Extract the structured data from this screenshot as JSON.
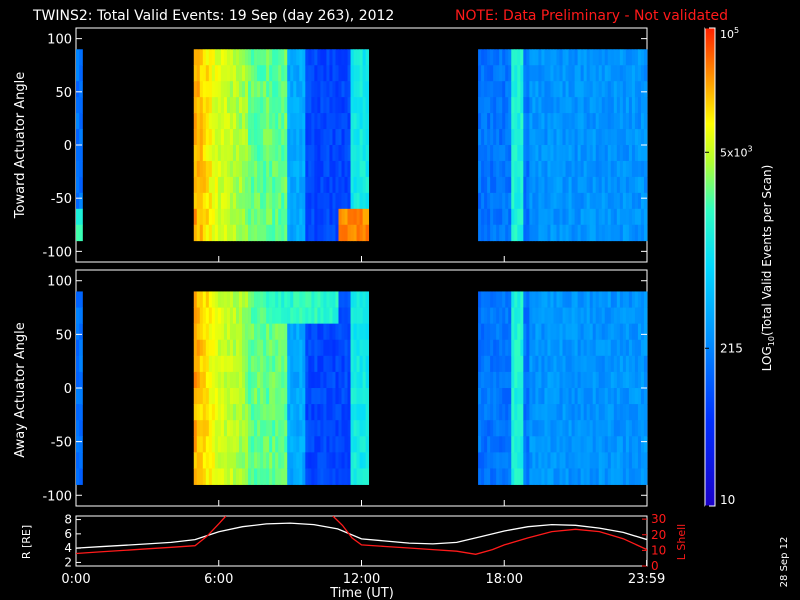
{
  "header": {
    "title": "TWINS2: Total Valid Events: 19 Sep (day 263), 2012",
    "note": "NOTE: Data Preliminary - Not validated",
    "note_color": "#ff1a1a"
  },
  "side_date": "28 Sep 12",
  "chart_data": [
    {
      "type": "heatmap",
      "ylabel": "Toward Actuator Angle",
      "ylim": [
        -110,
        110
      ],
      "y_ticks": [
        "100",
        "50",
        "0",
        "-50",
        "-100"
      ],
      "x_unit": "hours UT",
      "xlim": [
        0,
        24
      ],
      "data_blocks": [
        {
          "x": [
            0.0,
            0.27
          ],
          "y": [
            -90,
            90
          ],
          "level": 0.3
        },
        {
          "x": [
            4.95,
            12.3
          ],
          "y": [
            -90,
            90
          ],
          "level": 0.55
        },
        {
          "x": [
            16.9,
            24.0
          ],
          "y": [
            -90,
            90
          ],
          "level": 0.3
        }
      ],
      "value_note": "counts range 10 to 1e5 per scan; levels are log-scaled 0-1"
    },
    {
      "type": "heatmap",
      "ylabel": "Away Actuator Angle",
      "ylim": [
        -110,
        110
      ],
      "y_ticks": [
        "100",
        "50",
        "0",
        "-50",
        "-100"
      ],
      "xlim": [
        0,
        24
      ],
      "data_blocks": [
        {
          "x": [
            0.0,
            0.27
          ],
          "y": [
            -90,
            90
          ],
          "level": 0.25
        },
        {
          "x": [
            4.95,
            12.3
          ],
          "y": [
            -90,
            90
          ],
          "level": 0.5
        },
        {
          "x": [
            16.9,
            24.0
          ],
          "y": [
            -90,
            90
          ],
          "level": 0.3
        }
      ]
    },
    {
      "type": "line",
      "ylabel": "R [RE]",
      "ylabel2": "L Shell",
      "ylim": [
        1.5,
        8.5
      ],
      "ylim2": [
        0,
        32
      ],
      "y_ticks": [
        "8",
        "6",
        "4",
        "2"
      ],
      "y2_ticks": [
        "30",
        "20",
        "10",
        "0"
      ],
      "xlim": [
        0,
        24
      ],
      "x_ticks": [
        "0:00",
        "6:00",
        "12:00",
        "18:00",
        "23:59"
      ],
      "xlabel": "Time (UT)",
      "series": [
        {
          "color": "#ffffff",
          "axis": "left",
          "x": [
            0,
            1,
            2,
            3,
            4,
            5,
            6,
            7,
            8,
            9,
            10,
            11,
            12,
            13,
            14,
            15,
            16,
            17,
            18,
            19,
            20,
            21,
            22,
            23,
            24
          ],
          "y": [
            4.0,
            4.2,
            4.4,
            4.6,
            4.8,
            5.2,
            6.3,
            7.0,
            7.4,
            7.5,
            7.3,
            6.7,
            5.3,
            5.0,
            4.7,
            4.6,
            4.8,
            5.6,
            6.4,
            7.0,
            7.3,
            7.2,
            6.8,
            6.2,
            5.2
          ]
        },
        {
          "color": "#ff1a1a",
          "axis": "right",
          "x": [
            0,
            1,
            2,
            3,
            4,
            5,
            5.5,
            6,
            6.3
          ],
          "y": [
            8.0,
            9.0,
            10.0,
            11.0,
            12.0,
            13.0,
            19.0,
            27.0,
            32.0
          ]
        },
        {
          "color": "#ff1a1a",
          "axis": "right",
          "x": [
            10.8,
            11.2,
            11.6,
            12,
            13,
            14,
            15,
            16,
            16.8,
            17.5,
            18,
            19,
            20,
            21,
            22,
            23,
            24
          ],
          "y": [
            32.0,
            26.0,
            18.0,
            13.5,
            12.5,
            11.5,
            10.5,
            9.5,
            7.5,
            10.5,
            13.5,
            18.0,
            22.0,
            23.5,
            22.0,
            17.5,
            10.5
          ]
        }
      ]
    }
  ],
  "colorbar": {
    "label_prefix": "LOG",
    "label_sub": "10",
    "label_suffix": "(Total Valid Events per Scan)",
    "ticks": [
      {
        "label": "10",
        "level": 0.0
      },
      {
        "label": "215",
        "level": 0.33
      },
      {
        "label": "5x10",
        "sup": "3",
        "level": 0.74
      },
      {
        "label": "10",
        "sup": "5",
        "level": 1.0
      }
    ]
  }
}
